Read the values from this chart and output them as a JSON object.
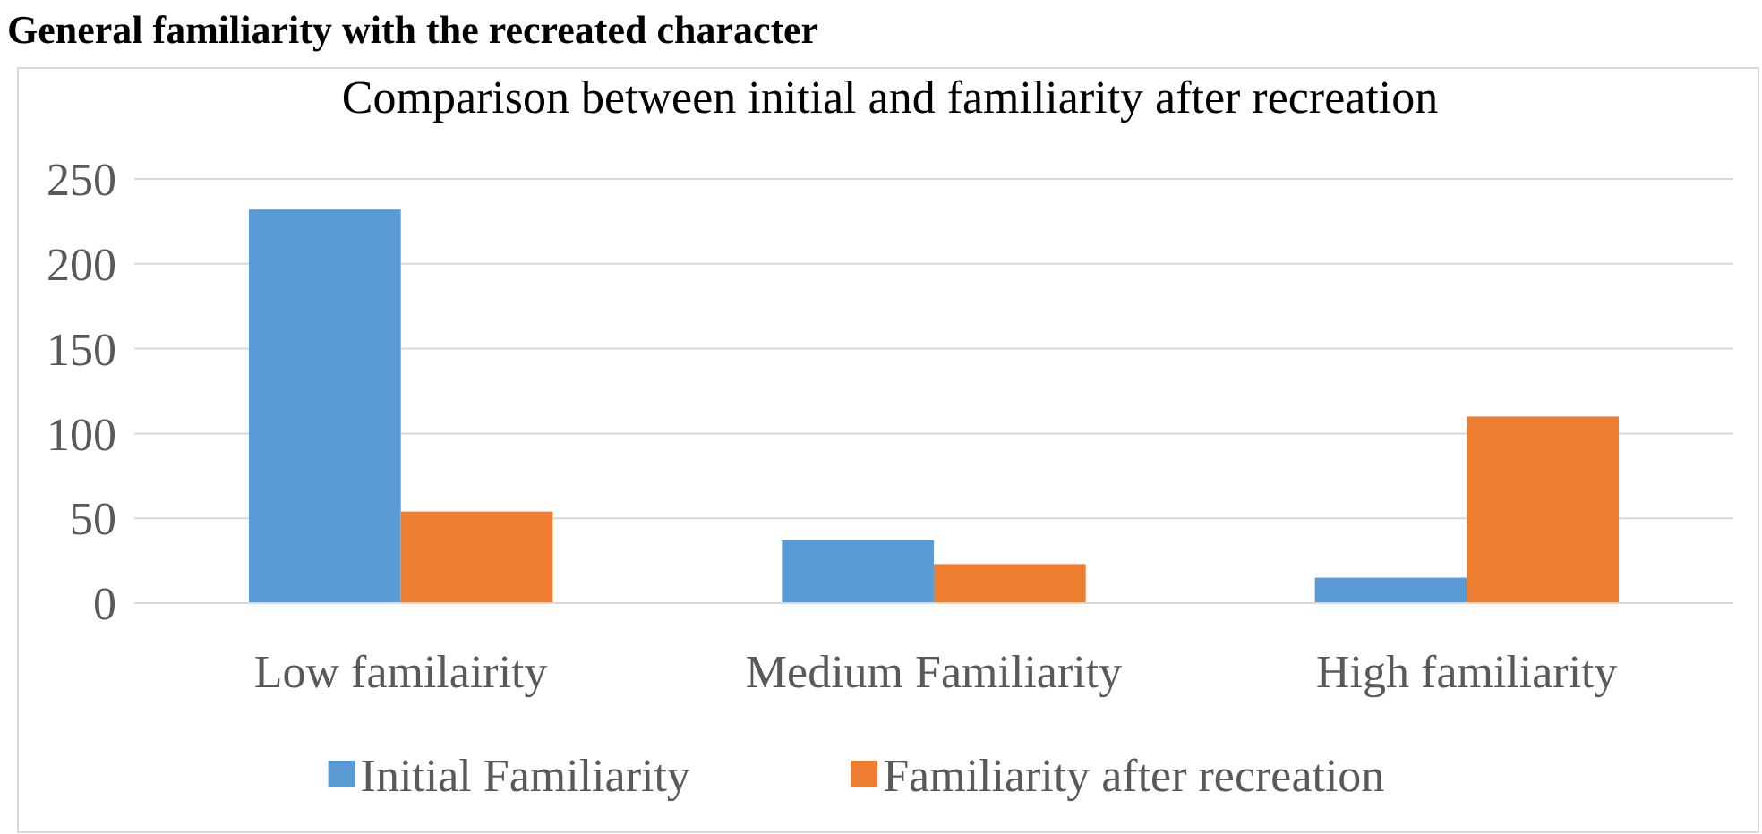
{
  "chart_data": {
    "type": "bar",
    "title": "Comparison between initial and familiarity after recreation",
    "annotations": [
      "General familiarity with the recreated character"
    ],
    "categories": [
      "Low familairity",
      "Medium Familiarity",
      "High familiarity"
    ],
    "series": [
      {
        "name": "Initial Familiarity",
        "color": "#5b9bd5",
        "values": [
          232,
          37,
          15
        ]
      },
      {
        "name": "Familiarity after recreation",
        "color": "#ed7d31",
        "values": [
          54,
          23,
          110
        ]
      }
    ],
    "ylim": [
      0,
      250
    ],
    "yticks": [
      0,
      50,
      100,
      150,
      200,
      250
    ],
    "grid": "y",
    "legend": "bottom"
  }
}
